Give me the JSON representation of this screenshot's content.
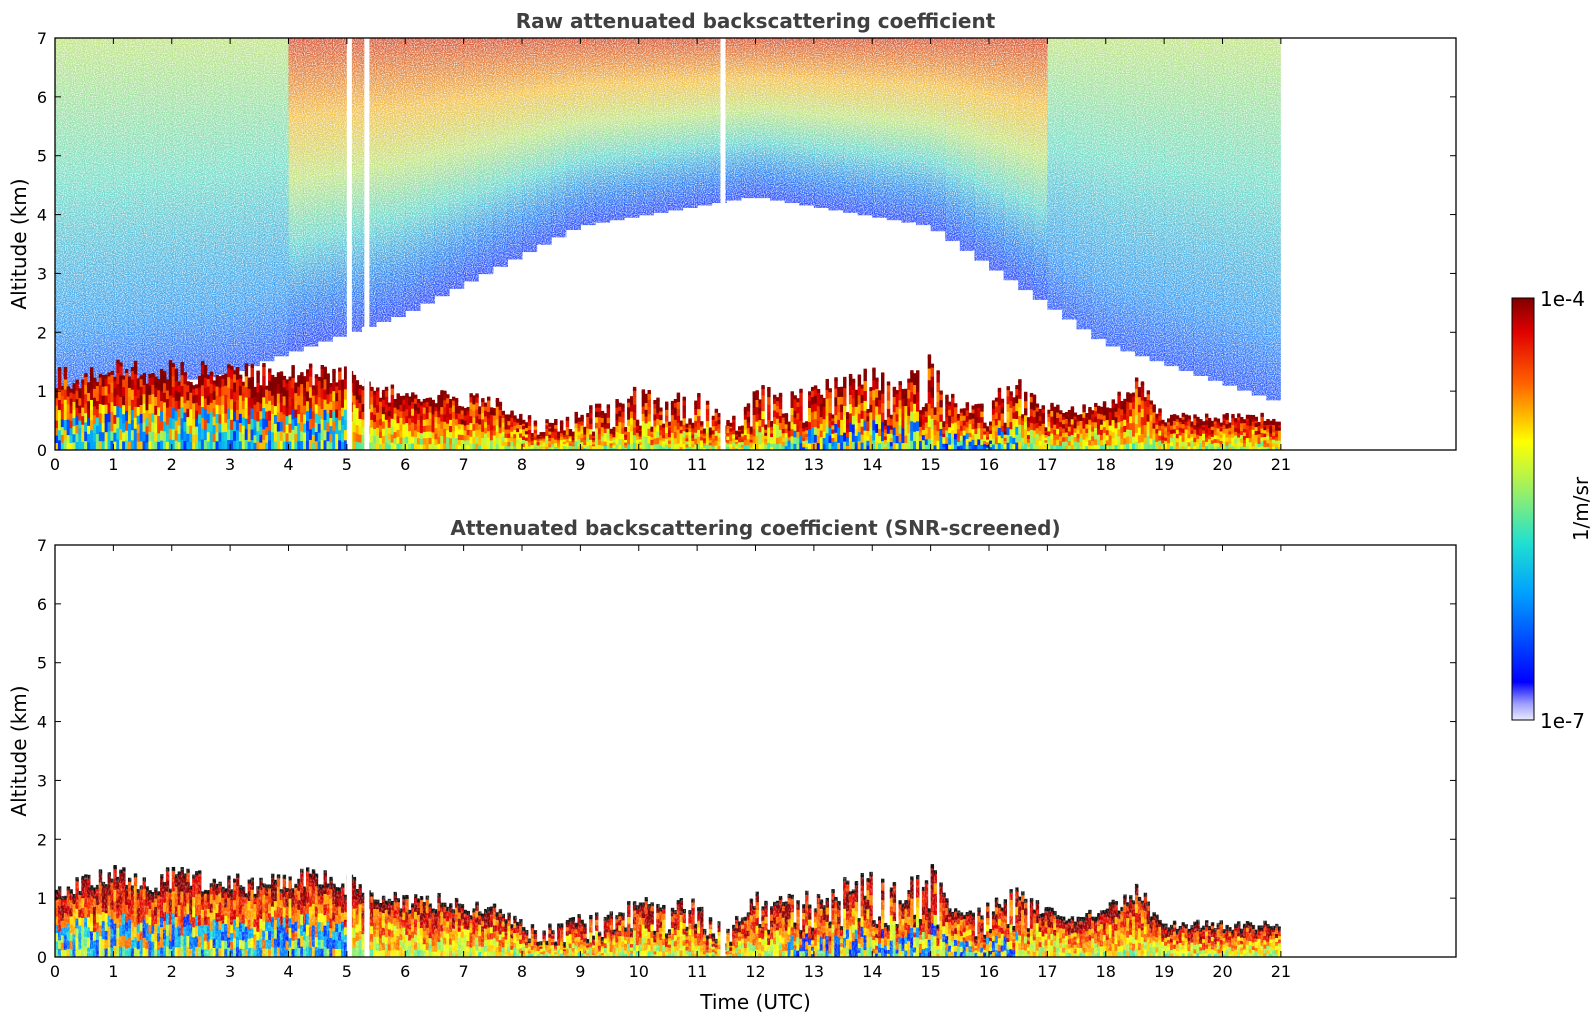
{
  "colors": {
    "low": "#0000ff",
    "mid": "#ffff00",
    "high": "#8b0000",
    "frame": "#000000",
    "title": "#404040"
  },
  "chart_data": [
    {
      "type": "heatmap",
      "title": "Raw attenuated backscattering coefficient",
      "xlabel": "",
      "ylabel": "Altitude (km)",
      "xlim": [
        0,
        24
      ],
      "ylim": [
        0,
        7
      ],
      "xticks": [
        "0",
        "1",
        "2",
        "3",
        "4",
        "5",
        "6",
        "7",
        "8",
        "9",
        "10",
        "11",
        "12",
        "13",
        "14",
        "15",
        "16",
        "17",
        "18",
        "19",
        "20",
        "21"
      ],
      "yticks": [
        "0",
        "1",
        "2",
        "3",
        "4",
        "5",
        "6",
        "7"
      ],
      "data_end_hour": 21,
      "layer_top_km": {
        "hours": [
          0,
          0.5,
          1,
          1.5,
          2,
          2.5,
          3,
          3.5,
          4,
          4.5,
          5,
          5.5,
          6,
          6.5,
          7,
          7.5,
          8,
          8.5,
          9,
          9.5,
          10,
          10.5,
          11,
          11.5,
          12,
          12.5,
          13,
          13.5,
          14,
          14.5,
          15,
          15.5,
          16,
          16.5,
          17,
          17.5,
          18,
          18.5,
          19,
          19.5,
          20,
          20.5,
          21
        ],
        "km": [
          1.15,
          1.15,
          1.3,
          1.25,
          1.25,
          1.25,
          1.25,
          1.2,
          1.25,
          1.25,
          1.2,
          0.9,
          0.9,
          0.9,
          0.8,
          0.75,
          0.5,
          0.45,
          0.6,
          0.7,
          0.9,
          0.75,
          0.9,
          0.4,
          0.9,
          1.0,
          0.9,
          1.1,
          1.2,
          1.0,
          1.4,
          0.6,
          0.8,
          1.0,
          0.7,
          0.6,
          0.7,
          1.1,
          0.5,
          0.5,
          0.5,
          0.5,
          0.5
        ]
      },
      "noise_decay_km": {
        "hours": [
          0,
          3,
          6,
          9,
          12,
          15,
          18,
          21
        ],
        "km": [
          2.0,
          2.5,
          3.5,
          5.0,
          5.5,
          5.0,
          3.0,
          2.0
        ]
      },
      "gap_hours": [
        5.0,
        5.3,
        11.4
      ]
    },
    {
      "type": "heatmap",
      "title": "Attenuated backscattering coefficient (SNR-screened)",
      "xlabel": "Time (UTC)",
      "ylabel": "Altitude (km)",
      "xlim": [
        0,
        24
      ],
      "ylim": [
        0,
        7
      ],
      "xticks": [
        "0",
        "1",
        "2",
        "3",
        "4",
        "5",
        "6",
        "7",
        "8",
        "9",
        "10",
        "11",
        "12",
        "13",
        "14",
        "15",
        "16",
        "17",
        "18",
        "19",
        "20",
        "21"
      ],
      "yticks": [
        "0",
        "1",
        "2",
        "3",
        "4",
        "5",
        "6",
        "7"
      ],
      "data_end_hour": 21
    }
  ],
  "colorbar": {
    "label": "1/m/sr",
    "min_label": "1e-7",
    "max_label": "1e-4",
    "scale": "log",
    "colormap": "jet"
  }
}
